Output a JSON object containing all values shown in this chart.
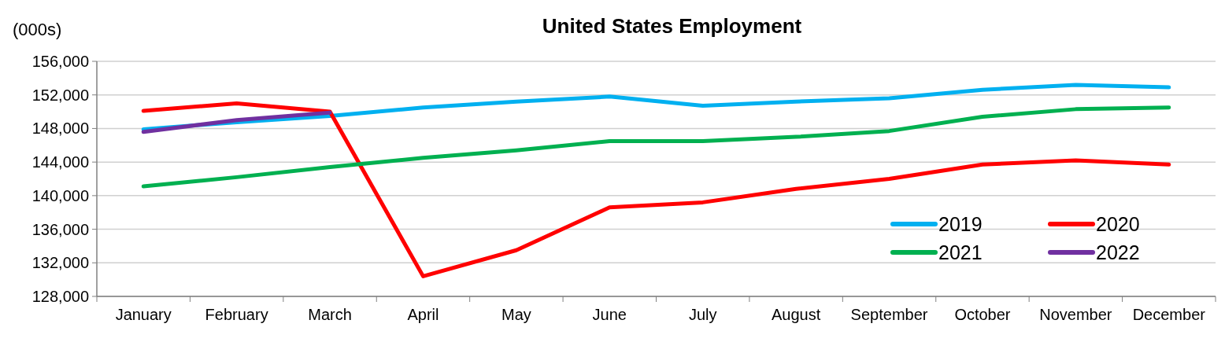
{
  "chart_data": {
    "type": "line",
    "title": "United States Employment",
    "ylabel": "(000s)",
    "categories": [
      "January",
      "February",
      "March",
      "April",
      "May",
      "June",
      "July",
      "August",
      "September",
      "October",
      "November",
      "December"
    ],
    "series": [
      {
        "name": "2019",
        "color": "#00b0f0",
        "values": [
          147900,
          148750,
          149500,
          150500,
          151200,
          151800,
          150700,
          151200,
          151600,
          152600,
          153200,
          152900
        ]
      },
      {
        "name": "2020",
        "color": "#ff0000",
        "values": [
          150100,
          151000,
          150000,
          130400,
          133500,
          138600,
          139200,
          140800,
          142000,
          143700,
          144200,
          143700
        ]
      },
      {
        "name": "2021",
        "color": "#00b050",
        "values": [
          141100,
          142200,
          143400,
          144500,
          145400,
          146500,
          146500,
          147000,
          147700,
          149400,
          150300,
          150500
        ]
      },
      {
        "name": "2022",
        "color": "#7030a0",
        "values": [
          147600,
          149000,
          149900,
          null,
          null,
          null,
          null,
          null,
          null,
          null,
          null,
          null
        ]
      }
    ],
    "ylim": [
      128000,
      156000
    ],
    "yticks": [
      {
        "value": 128000,
        "label": "128,000"
      },
      {
        "value": 132000,
        "label": "132,000"
      },
      {
        "value": 136000,
        "label": "136,000"
      },
      {
        "value": 140000,
        "label": "140,000"
      },
      {
        "value": 144000,
        "label": "144,000"
      },
      {
        "value": 148000,
        "label": "148,000"
      },
      {
        "value": 152000,
        "label": "152,000"
      },
      {
        "value": 156000,
        "label": "156,000"
      }
    ],
    "grid": "y",
    "legend": "bottom right",
    "marker": "none",
    "line_style": "solid"
  }
}
